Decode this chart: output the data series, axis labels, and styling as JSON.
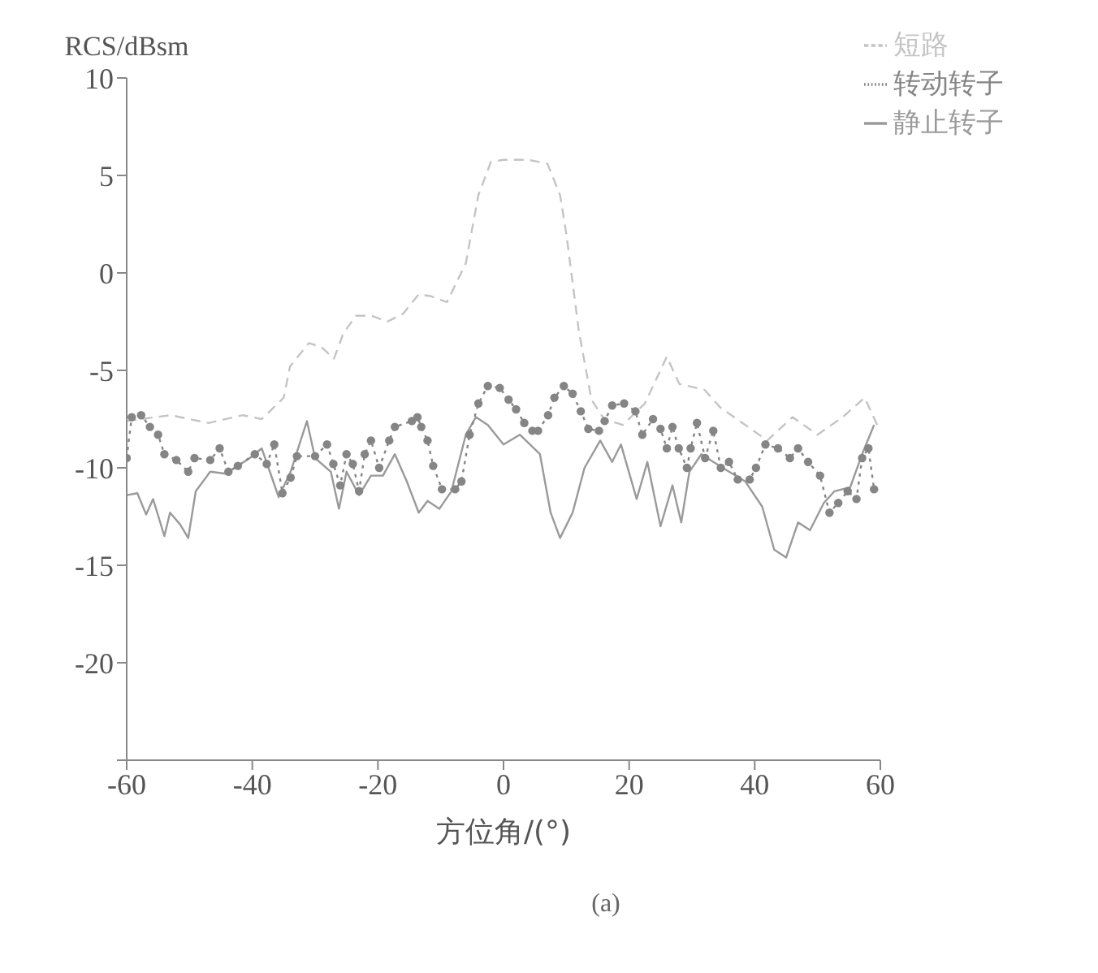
{
  "chart_data": {
    "type": "line",
    "xlabel": "方位角/(°)",
    "ylabel": "RCS/dBsm",
    "annotations": [
      "(a)"
    ],
    "xlim": [
      -60,
      60
    ],
    "xticks": [
      -60,
      -40,
      -20,
      0,
      20,
      40,
      60
    ],
    "ylim": [
      -25,
      10
    ],
    "yticks": [
      {
        "value": -25,
        "label": null
      },
      -20,
      -15,
      -10,
      -5,
      0,
      5,
      10
    ],
    "grid": false,
    "legend": "top right",
    "series": [
      {
        "name": "短路",
        "color": "#c4c4c4",
        "line_style": "dashed",
        "marker": "none",
        "x": [
          -60,
          -53,
          -47,
          -41.5,
          -38.5,
          -35,
          -34,
          -31,
          -29,
          -27,
          -25.5,
          -23.5,
          -21,
          -18.5,
          -16,
          -13.5,
          -11.5,
          -9,
          -6,
          -4,
          -2,
          0,
          4,
          7,
          9,
          10,
          12,
          14,
          16,
          19,
          22.5,
          26,
          28,
          32,
          34.5,
          38.5,
          42,
          46,
          50,
          54,
          57.5,
          59.5
        ],
        "values": [
          -7.6,
          -7.3,
          -7.7,
          -7.3,
          -7.5,
          -6.4,
          -4.8,
          -3.6,
          -3.8,
          -4.4,
          -3.1,
          -2.2,
          -2.2,
          -2.5,
          -2.1,
          -1.1,
          -1.2,
          -1.5,
          0.5,
          4,
          5.7,
          5.8,
          5.8,
          5.6,
          4,
          2,
          -3,
          -6.5,
          -7.5,
          -7.8,
          -6.7,
          -4.3,
          -5.7,
          -6,
          -6.9,
          -7.8,
          -8.6,
          -7.4,
          -8.3,
          -7.4,
          -6.4,
          -7.8
        ]
      },
      {
        "name": "静止转子",
        "color": "#9a9a9a",
        "line_style": "solid",
        "marker": "none",
        "x": [
          -60,
          -58.3,
          -56.9,
          -55.8,
          -54,
          -53.1,
          -51.5,
          -50.2,
          -49,
          -46.7,
          -44.2,
          -40.4,
          -38.5,
          -35.8,
          -33.9,
          -31.3,
          -30,
          -27.5,
          -26.2,
          -25,
          -23,
          -21.1,
          -19.2,
          -17.3,
          -15.4,
          -13.5,
          -12.1,
          -10.2,
          -8.3,
          -6,
          -4.4,
          -2.5,
          0,
          2.6,
          5.8,
          7.5,
          9,
          11,
          12.9,
          15.4,
          17.3,
          18.7,
          21.2,
          22.9,
          25,
          26.9,
          28.3,
          29.6,
          31.5,
          33.4,
          35.9,
          38.5,
          41.2,
          43.1,
          45,
          46.9,
          48.8,
          51,
          52.7,
          55.2,
          57.1,
          59
        ],
        "values": [
          -11.4,
          -11.3,
          -12.4,
          -11.6,
          -13.5,
          -12.3,
          -12.9,
          -13.6,
          -11.2,
          -10.2,
          -10.3,
          -9.5,
          -9,
          -11.5,
          -10.2,
          -7.6,
          -9.5,
          -10.2,
          -12.1,
          -10.2,
          -11.4,
          -10.4,
          -10.4,
          -9.3,
          -10.7,
          -12.3,
          -11.7,
          -12.1,
          -11.2,
          -8.3,
          -7.4,
          -7.8,
          -8.8,
          -8.3,
          -9.3,
          -12.3,
          -13.6,
          -12.3,
          -10,
          -8.6,
          -9.7,
          -8.8,
          -11.6,
          -9.7,
          -13,
          -10.9,
          -12.8,
          -10.2,
          -9.3,
          -9.7,
          -10.2,
          -10.7,
          -12,
          -14.2,
          -14.6,
          -12.8,
          -13.2,
          -11.8,
          -11.2,
          -11,
          -9.3,
          -7.8
        ]
      },
      {
        "name": "转动转子",
        "color": "#858585",
        "line_style": "dotted",
        "marker": "circle",
        "x": [
          -60,
          -59.2,
          -57.7,
          -56.3,
          -55,
          -54,
          -52.1,
          -50.2,
          -49.2,
          -46.7,
          -45.2,
          -43.8,
          -42.3,
          -39.6,
          -37.7,
          -36.5,
          -35.2,
          -33.9,
          -32.9,
          -30,
          -28.1,
          -27.1,
          -26,
          -25,
          -24,
          -23,
          -22.1,
          -21.1,
          -19.8,
          -18.2,
          -17.3,
          -14.6,
          -13.7,
          -13.1,
          -12.1,
          -11.2,
          -9.8,
          -7.7,
          -6.7,
          -5.4,
          -4,
          -2.5,
          -0.6,
          0.8,
          2,
          3.3,
          4.6,
          5.5,
          7.1,
          8.1,
          9.6,
          11,
          12.3,
          13.5,
          15.2,
          16.1,
          17.3,
          19.2,
          21,
          22.1,
          23.8,
          25,
          26,
          26.9,
          27.9,
          29.2,
          29.8,
          30.8,
          32.1,
          33.4,
          34.6,
          35.9,
          37.3,
          39.2,
          40.2,
          41.7,
          43.7,
          45.6,
          46.9,
          48.5,
          50.4,
          51.9,
          53.3,
          54.8,
          56.2,
          57.1,
          58.1,
          59
        ],
        "values": [
          -9.5,
          -7.4,
          -7.3,
          -7.9,
          -8.3,
          -9.3,
          -9.6,
          -10.2,
          -9.5,
          -9.6,
          -9,
          -10.2,
          -9.9,
          -9.3,
          -9.8,
          -8.8,
          -11.3,
          -10.5,
          -9.4,
          -9.4,
          -8.8,
          -9.8,
          -10.9,
          -9.3,
          -9.8,
          -11.2,
          -9.3,
          -8.6,
          -10,
          -8.6,
          -7.9,
          -7.6,
          -7.4,
          -7.9,
          -8.6,
          -9.9,
          -11.1,
          -11.1,
          -10.7,
          -8.3,
          -6.7,
          -5.8,
          -5.9,
          -6.5,
          -7,
          -7.7,
          -8.1,
          -8.1,
          -7.3,
          -6.4,
          -5.8,
          -6.2,
          -7.1,
          -8,
          -8.1,
          -7.6,
          -6.8,
          -6.7,
          -7.1,
          -8.3,
          -7.5,
          -8,
          -9,
          -7.9,
          -9,
          -10,
          -9,
          -7.7,
          -9.5,
          -8.1,
          -10,
          -9.7,
          -10.6,
          -10.6,
          -10,
          -8.8,
          -9,
          -9.5,
          -9,
          -9.7,
          -10.4,
          -12.3,
          -11.8,
          -11.2,
          -11.6,
          -9.5,
          -9,
          -11.1
        ]
      }
    ]
  }
}
